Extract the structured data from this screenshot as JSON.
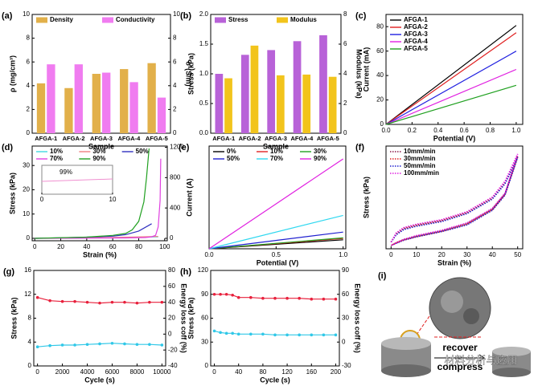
{
  "chart_data": [
    {
      "type": "bar",
      "panel": "(a)",
      "xlabel": "Sample",
      "ylabel": "ρ (mg/cm³)",
      "y2label": "σ (S/m)",
      "categories": [
        "AFGA-1",
        "AFGA-2",
        "AFGA-3",
        "AFGA-4",
        "AFGA-5"
      ],
      "series": [
        {
          "name": "Density",
          "color": "#e2b04a",
          "values": [
            4.2,
            3.8,
            5.0,
            5.4,
            5.9
          ]
        },
        {
          "name": "Conductivity",
          "color": "#f07cf0",
          "axis": "y2",
          "values": [
            5.8,
            5.8,
            5.1,
            4.3,
            3.0
          ]
        }
      ],
      "ylim": [
        0,
        10
      ],
      "yticks": [
        0,
        2,
        4,
        6,
        8,
        10
      ],
      "y2lim": [
        0,
        10
      ],
      "y2ticks": [
        0,
        2,
        4,
        6,
        8,
        10
      ],
      "legend": "upper left",
      "legend_ncol": 2
    },
    {
      "type": "bar",
      "panel": "(b)",
      "xlabel": "Sample",
      "ylabel": "Stress (kPa)",
      "y2label": "Modulus (kPa)",
      "categories": [
        "AFGA-1",
        "AFGA-2",
        "AFGA-3",
        "AFGA-4",
        "AFGA-5"
      ],
      "series": [
        {
          "name": "Stress",
          "color": "#b862d8",
          "values": [
            1.0,
            1.32,
            1.4,
            1.55,
            1.65
          ]
        },
        {
          "name": "Modulus",
          "color": "#f2c41c",
          "axis": "y2",
          "values": [
            3.7,
            5.9,
            3.9,
            3.95,
            3.8
          ]
        }
      ],
      "ylim": [
        0,
        2
      ],
      "yticks": [
        {
          "value": 0,
          "label": "0.0"
        },
        0.5,
        {
          "value": 1,
          "label": "1.0"
        },
        1.5,
        {
          "value": 2,
          "label": "2.0"
        }
      ],
      "y2lim": [
        0,
        8
      ],
      "y2ticks": [
        0,
        2,
        4,
        6,
        8
      ],
      "legend": "upper left",
      "legend_ncol": 2
    },
    {
      "type": "line",
      "panel": "(c)",
      "xlabel": "Potential (V)",
      "ylabel": "Current (mA)",
      "x": [
        0,
        1
      ],
      "series": [
        {
          "name": "AFGA-1",
          "color": "#000000",
          "values": [
            0,
            81
          ]
        },
        {
          "name": "AFGA-2",
          "color": "#e02020",
          "values": [
            0,
            75
          ]
        },
        {
          "name": "AFGA-3",
          "color": "#2020e0",
          "values": [
            0,
            60
          ]
        },
        {
          "name": "AFGA-4",
          "color": "#e020e0",
          "values": [
            0,
            45
          ]
        },
        {
          "name": "AFGA-5",
          "color": "#20a020",
          "values": [
            0,
            32
          ]
        }
      ],
      "xlim": [
        0,
        1.05
      ],
      "xticks": [
        {
          "value": 0,
          "label": "0.0"
        },
        0.2,
        0.4,
        0.6,
        0.8,
        {
          "value": 1,
          "label": "1.0"
        }
      ],
      "ylim": [
        0,
        90
      ],
      "yticks": [
        0,
        20,
        40,
        60,
        80
      ],
      "legend": "upper left",
      "legend_ncol": 1
    },
    {
      "type": "line",
      "panel": "(d)",
      "xlabel": "Strain (%)",
      "ylabel": "Stress (kPa)",
      "series": [
        {
          "name": "10%",
          "color": "#40d8e0",
          "x": [
            0,
            20,
            40,
            60,
            80,
            95
          ],
          "values": [
            0,
            0.1,
            0.2,
            0.3,
            0.5,
            0.6
          ]
        },
        {
          "name": "30%",
          "color": "#f08080",
          "x": [
            0,
            20,
            40,
            60,
            80,
            95
          ],
          "values": [
            0,
            0.1,
            0.2,
            0.4,
            0.6,
            0.8
          ]
        },
        {
          "name": "50%",
          "color": "#3030c0",
          "x": [
            0,
            20,
            40,
            60,
            70,
            80,
            90
          ],
          "values": [
            0,
            0.2,
            0.5,
            0.9,
            1.5,
            3,
            6
          ]
        },
        {
          "name": "70%",
          "color": "#e040e0",
          "axis": "y2",
          "x": [
            0,
            40,
            70,
            85,
            90,
            93,
            95,
            96.5,
            97
          ],
          "values": [
            0,
            2,
            5,
            10,
            20,
            40,
            150,
            500,
            1050
          ]
        },
        {
          "name": "90%",
          "color": "#20a020",
          "x": [
            0,
            40,
            60,
            70,
            75,
            80,
            84,
            86,
            88
          ],
          "values": [
            0,
            0.5,
            1.2,
            2,
            3.5,
            7,
            15,
            25,
            37
          ]
        }
      ],
      "xlim": [
        -2,
        102
      ],
      "xticks": [
        0,
        20,
        40,
        60,
        80,
        100
      ],
      "ylim": [
        -1,
        38
      ],
      "yticks": [
        0,
        10,
        20,
        30
      ],
      "y2lim": [
        -32,
        1216
      ],
      "y2ticks": [
        0,
        400,
        800,
        1200
      ],
      "inset": {
        "label": "99%",
        "xticks": [
          0,
          10
        ]
      },
      "legend": "upper left",
      "legend_ncol": 3
    },
    {
      "type": "line",
      "panel": "(e)",
      "xlabel": "Potential (V)",
      "ylabel": "Current (A)",
      "x": [
        0,
        1
      ],
      "series": [
        {
          "name": "0%",
          "color": "#000000",
          "values": [
            0,
            0.07
          ]
        },
        {
          "name": "10%",
          "color": "#e02020",
          "values": [
            0,
            0.08
          ]
        },
        {
          "name": "30%",
          "color": "#20a020",
          "values": [
            0,
            0.085
          ]
        },
        {
          "name": "50%",
          "color": "#2020d0",
          "values": [
            0,
            0.13
          ]
        },
        {
          "name": "70%",
          "color": "#30d8f0",
          "values": [
            0,
            0.26
          ]
        },
        {
          "name": "90%",
          "color": "#e020e0",
          "values": [
            0,
            0.7
          ]
        }
      ],
      "xlim": [
        0,
        1.02
      ],
      "xticks": [
        {
          "value": 0,
          "label": "0.0"
        },
        0.5,
        {
          "value": 1,
          "label": "1.0"
        }
      ],
      "ylim": [
        0,
        0.8
      ],
      "legend": "upper left",
      "legend_ncol": 3
    },
    {
      "type": "line",
      "panel": "(f)",
      "xlabel": "Strain (%)",
      "ylabel": "Stress (kPa)",
      "linestyle": "dotted",
      "series": [
        {
          "name": "10mm/min",
          "color": "#8b1a4a",
          "x": [
            0,
            2,
            5,
            10,
            20,
            30,
            40,
            45,
            50,
            45,
            40,
            30,
            20,
            10,
            5,
            2,
            0
          ],
          "values": [
            0.05,
            0.18,
            0.26,
            0.31,
            0.38,
            0.5,
            0.72,
            0.95,
            1.35,
            0.78,
            0.55,
            0.33,
            0.22,
            0.14,
            0.09,
            0.04,
            0
          ]
        },
        {
          "name": "30mm/min",
          "color": "#e02020",
          "x": [
            0,
            2,
            5,
            10,
            20,
            30,
            40,
            45,
            50,
            45,
            40,
            30,
            20,
            10,
            5,
            2,
            0
          ],
          "values": [
            0.05,
            0.17,
            0.25,
            0.3,
            0.37,
            0.49,
            0.71,
            0.94,
            1.34,
            0.77,
            0.54,
            0.32,
            0.21,
            0.13,
            0.08,
            0.04,
            0
          ]
        },
        {
          "name": "50mm/min",
          "color": "#2020d0",
          "x": [
            0,
            2,
            5,
            10,
            20,
            30,
            40,
            45,
            50,
            45,
            40,
            30,
            20,
            10,
            5,
            2,
            0
          ],
          "values": [
            0.05,
            0.16,
            0.24,
            0.29,
            0.36,
            0.48,
            0.7,
            0.93,
            1.33,
            0.76,
            0.53,
            0.31,
            0.21,
            0.13,
            0.08,
            0.03,
            0
          ]
        },
        {
          "name": "100mm/min",
          "color": "#e020e0",
          "x": [
            0,
            2,
            5,
            10,
            20,
            30,
            40,
            45,
            50,
            45,
            40,
            30,
            20,
            10,
            5,
            2,
            0
          ],
          "values": [
            0.05,
            0.19,
            0.27,
            0.32,
            0.39,
            0.51,
            0.73,
            0.97,
            1.38,
            0.79,
            0.56,
            0.34,
            0.23,
            0.15,
            0.09,
            0.04,
            0
          ]
        }
      ],
      "xlim": [
        -2,
        52
      ],
      "xticks": [
        0,
        10,
        20,
        30,
        40,
        50
      ],
      "ylim": [
        -0.05,
        1.5
      ],
      "legend": "upper left",
      "legend_ncol": 1
    },
    {
      "type": "line",
      "panel": "(g)",
      "xlabel": "Cycle (s)",
      "ylabel": "Stress (kPa)",
      "y2label": "Energy loss coff (%)",
      "marker": true,
      "x": [
        0,
        1000,
        2000,
        3000,
        4000,
        5000,
        6000,
        7000,
        8000,
        9000,
        10000
      ],
      "series": [
        {
          "color": "#30c8e8",
          "values": [
            3.2,
            3.4,
            3.5,
            3.5,
            3.6,
            3.7,
            3.8,
            3.7,
            3.6,
            3.6,
            3.5
          ]
        },
        {
          "color": "#e8203c",
          "axis": "y2",
          "values": [
            46,
            42,
            41,
            41,
            40,
            39,
            40,
            40,
            39,
            40,
            40
          ]
        }
      ],
      "xlim": [
        -300,
        10300
      ],
      "xticks": [
        0,
        2000,
        4000,
        6000,
        8000,
        10000
      ],
      "ylim": [
        0,
        16
      ],
      "yticks": [
        0,
        4,
        8,
        12,
        16
      ],
      "y2lim": [
        -40,
        80
      ],
      "y2ticks": [
        -40,
        -20,
        0,
        20,
        40,
        60,
        80
      ]
    },
    {
      "type": "line",
      "panel": "(h)",
      "xlabel": "Cycle (s)",
      "ylabel": "Stress (kPa)",
      "y2label": "Energy loss coff (%)",
      "marker": true,
      "x": [
        0,
        10,
        20,
        30,
        40,
        60,
        80,
        100,
        120,
        140,
        160,
        180,
        200
      ],
      "series": [
        {
          "color": "#30c8e8",
          "values": [
            44,
            42,
            41,
            41,
            40,
            40,
            40,
            39,
            39,
            39,
            39,
            39,
            39
          ]
        },
        {
          "color": "#e8203c",
          "axis": "y2",
          "values": [
            60,
            60,
            60,
            59,
            56,
            56,
            55,
            55,
            55,
            55,
            54,
            54,
            54
          ]
        }
      ],
      "xlim": [
        -6,
        206
      ],
      "xticks": [
        0,
        40,
        80,
        120,
        160,
        200
      ],
      "ylim": [
        0,
        120
      ],
      "yticks": [
        0,
        30,
        60,
        90,
        120
      ],
      "y2lim": [
        -30,
        90
      ],
      "y2ticks": [
        -30,
        0,
        30,
        60,
        90
      ]
    }
  ],
  "panel_i": {
    "label": "(i)",
    "recover": "recover",
    "compress": "compress"
  },
  "watermark": "材料分析与应用"
}
